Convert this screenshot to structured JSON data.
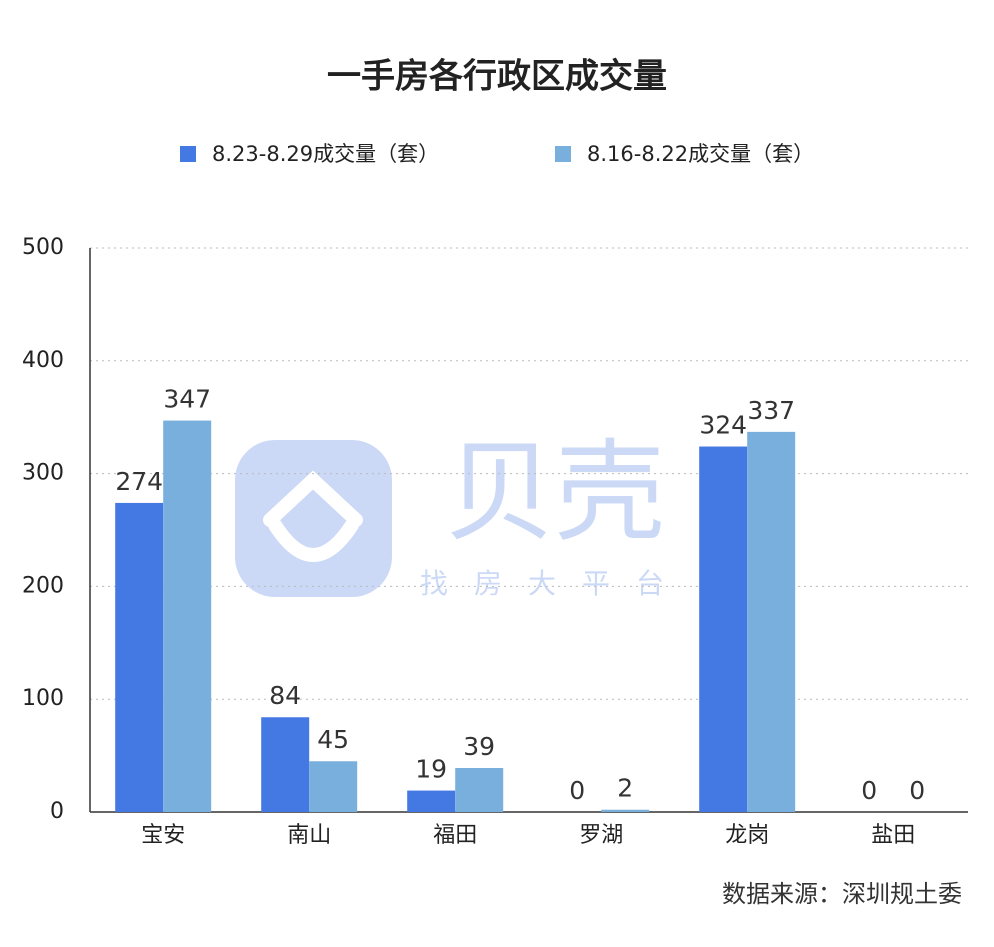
{
  "chart_data": {
    "type": "bar",
    "title": "一手房各行政区成交量",
    "categories": [
      "宝安",
      "南山",
      "福田",
      "罗湖",
      "龙岗",
      "盐田"
    ],
    "series": [
      {
        "name": "8.23-8.29成交量（套）",
        "color": "#4479e4",
        "values": [
          274,
          84,
          19,
          0,
          324,
          0
        ]
      },
      {
        "name": "8.16-8.22成交量（套）",
        "color": "#79afdc",
        "values": [
          347,
          45,
          39,
          2,
          337,
          0
        ]
      }
    ],
    "ylim": [
      0,
      500
    ],
    "yticks": [
      0,
      100,
      200,
      300,
      400,
      500
    ],
    "grid": true
  },
  "source": "数据来源：深圳规土委",
  "watermark": {
    "name": "贝壳",
    "slogan": "找房大平台"
  }
}
